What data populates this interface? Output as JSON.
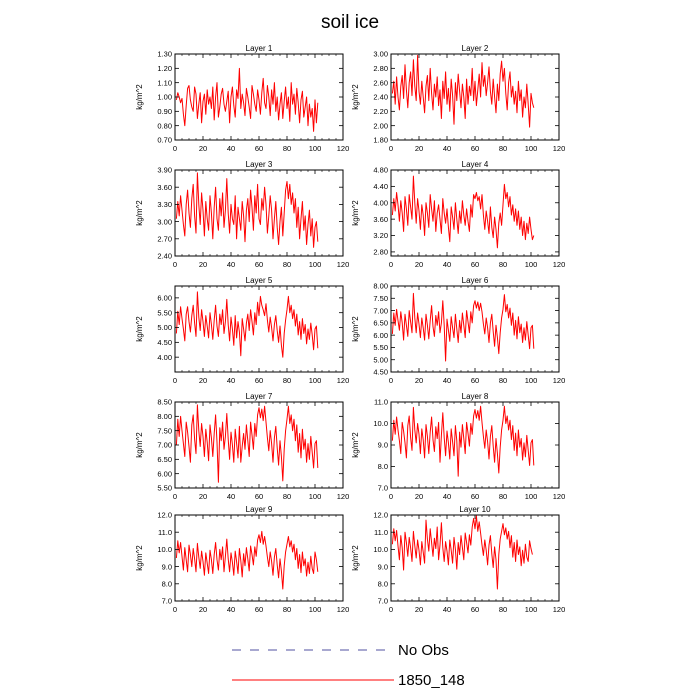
{
  "title": "soil ice",
  "chart_data": {
    "type": "line",
    "title": "soil ice",
    "legend": {
      "placement": "bottom",
      "entries": [
        {
          "label": "No Obs",
          "color": "#5050a0",
          "style": "dashed"
        },
        {
          "label": "1850_148",
          "color": "#ff0000",
          "style": "solid"
        }
      ]
    },
    "xlim": [
      0,
      120
    ],
    "xticks": [
      0,
      20,
      40,
      60,
      80,
      100,
      120
    ],
    "series_color": "#ff0000",
    "panels": [
      {
        "title": "Layer 1",
        "ylabel": "kg/m^2",
        "ylim": [
          0.7,
          1.3
        ],
        "yticks": [
          "0.70",
          "0.80",
          "0.90",
          "1.00",
          "1.10",
          "1.20",
          "1.30"
        ],
        "x_start": 1,
        "x_step": 1,
        "values": [
          0.98,
          1.03,
          1.0,
          0.96,
          0.99,
          0.88,
          0.8,
          0.94,
          1.06,
          1.08,
          0.98,
          0.93,
          0.9,
          1.07,
          1.02,
          0.85,
          0.95,
          1.03,
          0.82,
          0.97,
          1.02,
          0.88,
          1.05,
          0.95,
          1.0,
          0.92,
          1.07,
          0.84,
          1.0,
          1.1,
          0.86,
          0.93,
          1.02,
          1.06,
          0.95,
          0.9,
          0.97,
          1.04,
          0.82,
          1.0,
          1.07,
          0.94,
          0.86,
          1.05,
          0.99,
          1.2,
          0.92,
          1.02,
          0.96,
          0.87,
          1.06,
          1.0,
          0.93,
          0.85,
          1.08,
          1.02,
          0.95,
          0.9,
          1.05,
          0.98,
          0.88,
          1.03,
          1.13,
          0.96,
          0.92,
          1.08,
          1.0,
          0.87,
          1.05,
          0.95,
          1.1,
          0.9,
          1.0,
          0.84,
          0.95,
          1.03,
          0.85,
          0.97,
          1.07,
          0.92,
          1.0,
          0.83,
          1.1,
          0.95,
          1.02,
          0.88,
          1.06,
          0.96,
          0.82,
          0.98,
          1.04,
          0.86,
          0.93,
          1.0,
          0.8,
          0.95,
          0.86,
          0.92,
          0.76,
          0.98,
          0.82,
          0.96
        ]
      },
      {
        "title": "Layer 2",
        "ylabel": "kg/m^2",
        "ylim": [
          1.8,
          3.0
        ],
        "yticks": [
          "1.80",
          "2.00",
          "2.20",
          "2.40",
          "2.60",
          "2.80",
          "3.00"
        ],
        "x_start": 1,
        "x_step": 1,
        "values": [
          2.45,
          2.62,
          2.3,
          2.68,
          2.4,
          2.22,
          2.55,
          2.7,
          2.38,
          2.85,
          2.5,
          2.25,
          2.6,
          2.75,
          2.42,
          2.92,
          2.55,
          2.35,
          2.98,
          2.48,
          2.3,
          2.62,
          2.4,
          2.18,
          2.55,
          2.7,
          2.35,
          2.8,
          2.45,
          2.22,
          2.58,
          2.4,
          2.68,
          2.28,
          2.5,
          2.1,
          2.62,
          2.38,
          2.75,
          2.3,
          2.52,
          2.2,
          2.65,
          2.42,
          2.02,
          2.6,
          2.35,
          2.72,
          2.48,
          2.25,
          2.58,
          2.4,
          2.1,
          2.65,
          2.3,
          2.55,
          2.42,
          2.8,
          2.35,
          2.62,
          2.28,
          2.5,
          2.72,
          2.4,
          2.88,
          2.55,
          2.7,
          2.42,
          2.6,
          2.82,
          2.48,
          2.3,
          2.65,
          2.4,
          2.18,
          2.58,
          2.35,
          2.72,
          2.9,
          2.62,
          2.8,
          2.45,
          2.22,
          2.6,
          2.75,
          2.4,
          2.55,
          2.3,
          2.48,
          2.18,
          2.62,
          2.35,
          2.5,
          2.12,
          2.4,
          2.25,
          2.58,
          2.3,
          1.98,
          2.45,
          2.32,
          2.25
        ]
      },
      {
        "title": "Layer 3",
        "ylabel": "kg/m^2",
        "ylim": [
          2.4,
          3.9
        ],
        "yticks": [
          "2.40",
          "2.70",
          "3.00",
          "3.30",
          "3.60",
          "3.90"
        ],
        "x_start": 1,
        "x_step": 1,
        "values": [
          3.05,
          3.35,
          3.1,
          3.45,
          3.2,
          2.95,
          2.75,
          3.3,
          3.55,
          3.15,
          2.9,
          3.4,
          3.65,
          3.1,
          2.8,
          3.85,
          3.3,
          2.95,
          3.5,
          3.2,
          2.75,
          3.35,
          3.05,
          2.85,
          3.45,
          3.15,
          2.7,
          3.25,
          3.6,
          3.05,
          2.85,
          3.4,
          3.1,
          3.5,
          2.9,
          3.2,
          3.75,
          3.15,
          2.8,
          3.3,
          3.05,
          2.95,
          3.45,
          2.7,
          3.25,
          3.05,
          2.85,
          3.35,
          3.1,
          2.65,
          3.2,
          3.4,
          3.0,
          3.55,
          3.25,
          2.85,
          3.45,
          3.15,
          3.65,
          3.05,
          2.95,
          3.4,
          3.2,
          3.6,
          3.3,
          2.8,
          3.1,
          3.45,
          3.2,
          2.7,
          3.05,
          3.35,
          2.9,
          2.6,
          3.0,
          3.25,
          2.75,
          3.15,
          3.55,
          3.7,
          3.4,
          3.65,
          3.3,
          3.5,
          3.15,
          3.4,
          2.9,
          3.25,
          2.7,
          3.05,
          3.35,
          2.85,
          3.1,
          2.6,
          2.95,
          3.2,
          2.75,
          3.05,
          2.55,
          2.9,
          3.0,
          2.65
        ]
      },
      {
        "title": "Layer 4",
        "ylabel": "kg/m^2",
        "ylim": [
          2.7,
          4.8
        ],
        "yticks": [
          "2.80",
          "3.20",
          "3.60",
          "4.00",
          "4.40",
          "4.80"
        ],
        "x_start": 1,
        "x_step": 1,
        "values": [
          3.7,
          4.1,
          3.8,
          4.25,
          3.95,
          3.55,
          4.05,
          3.75,
          3.3,
          4.15,
          3.85,
          3.45,
          4.2,
          3.9,
          3.6,
          4.65,
          4.0,
          3.5,
          4.1,
          3.8,
          3.35,
          3.95,
          3.7,
          3.2,
          4.0,
          3.75,
          3.4,
          4.2,
          3.85,
          3.55,
          4.05,
          3.3,
          3.75,
          3.95,
          3.6,
          3.25,
          4.1,
          3.75,
          3.5,
          3.85,
          3.4,
          3.05,
          3.9,
          3.65,
          3.35,
          4.0,
          3.6,
          3.25,
          3.8,
          3.5,
          4.05,
          3.7,
          3.45,
          3.85,
          3.55,
          3.3,
          3.95,
          3.65,
          4.2,
          4.1,
          4.25,
          4.05,
          4.15,
          3.85,
          4.2,
          3.7,
          3.35,
          3.8,
          3.55,
          3.25,
          3.9,
          3.4,
          3.15,
          3.65,
          3.35,
          2.9,
          3.5,
          3.75,
          3.45,
          3.95,
          4.45,
          4.1,
          4.25,
          3.9,
          4.15,
          3.7,
          3.95,
          3.55,
          3.85,
          3.45,
          3.8,
          3.35,
          3.65,
          3.2,
          3.55,
          3.1,
          3.5,
          3.25,
          3.65,
          3.35,
          3.1,
          3.2
        ]
      },
      {
        "title": "Layer 5",
        "ylabel": "kg/m^2",
        "ylim": [
          3.5,
          6.4
        ],
        "yticks": [
          "4.00",
          "4.50",
          "5.00",
          "5.50",
          "6.00"
        ],
        "x_start": 1,
        "x_step": 1,
        "values": [
          4.8,
          5.55,
          5.1,
          5.7,
          5.3,
          4.95,
          4.55,
          5.45,
          5.7,
          5.2,
          4.85,
          5.4,
          5.75,
          5.15,
          4.7,
          6.2,
          5.35,
          4.9,
          5.6,
          5.2,
          4.7,
          5.4,
          5.05,
          4.65,
          5.5,
          5.1,
          4.6,
          5.25,
          5.75,
          5.05,
          4.7,
          5.45,
          5.1,
          5.6,
          4.8,
          5.2,
          5.95,
          5.1,
          4.55,
          5.35,
          4.95,
          4.4,
          5.4,
          4.65,
          5.2,
          4.85,
          4.05,
          5.3,
          4.95,
          4.55,
          5.15,
          5.45,
          4.9,
          5.6,
          5.2,
          4.75,
          5.5,
          5.1,
          5.85,
          5.4,
          6.05,
          5.75,
          5.6,
          5.4,
          5.8,
          5.25,
          4.85,
          5.35,
          5.0,
          4.55,
          5.1,
          5.4,
          4.9,
          4.5,
          5.05,
          4.4,
          4.0,
          4.8,
          5.25,
          5.6,
          6.05,
          5.5,
          5.75,
          5.3,
          5.6,
          5.05,
          5.45,
          4.75,
          5.2,
          4.6,
          5.3,
          4.8,
          5.1,
          4.45,
          4.95,
          4.6,
          5.15,
          4.75,
          4.25,
          4.95,
          5.05,
          4.3
        ]
      },
      {
        "title": "Layer 6",
        "ylabel": "kg/m^2",
        "ylim": [
          4.5,
          8.0
        ],
        "yticks": [
          "4.50",
          "5.00",
          "5.50",
          "6.00",
          "6.50",
          "7.00",
          "7.50",
          "8.00"
        ],
        "x_start": 1,
        "x_step": 1,
        "values": [
          6.05,
          6.9,
          6.4,
          7.05,
          6.6,
          6.2,
          6.95,
          6.5,
          5.8,
          6.85,
          6.4,
          5.95,
          7.0,
          6.55,
          6.1,
          7.7,
          6.7,
          6.1,
          6.9,
          6.45,
          5.9,
          6.7,
          6.3,
          5.8,
          6.85,
          6.4,
          5.85,
          6.6,
          7.2,
          6.35,
          5.95,
          6.8,
          6.4,
          6.95,
          6.1,
          6.5,
          7.4,
          6.4,
          4.95,
          6.65,
          6.2,
          5.75,
          6.75,
          6.3,
          5.9,
          6.85,
          6.25,
          5.7,
          6.6,
          6.1,
          6.9,
          6.4,
          5.9,
          7.0,
          6.55,
          6.1,
          6.95,
          6.5,
          7.2,
          7.4,
          7.1,
          7.35,
          7.0,
          7.3,
          6.95,
          6.45,
          6.05,
          6.7,
          6.3,
          5.7,
          6.5,
          6.85,
          6.15,
          5.55,
          6.4,
          5.9,
          5.25,
          6.1,
          6.7,
          7.05,
          7.65,
          6.95,
          7.25,
          6.7,
          7.1,
          6.4,
          6.9,
          6.0,
          6.6,
          5.85,
          6.75,
          6.1,
          6.45,
          5.7,
          6.3,
          5.8,
          6.55,
          6.0,
          5.45,
          6.3,
          6.4,
          5.45
        ]
      },
      {
        "title": "Layer 7",
        "ylabel": "kg/m^2",
        "ylim": [
          5.5,
          8.5
        ],
        "yticks": [
          "5.50",
          "6.00",
          "6.50",
          "7.00",
          "7.50",
          "8.00",
          "8.50"
        ],
        "x_start": 1,
        "x_step": 1,
        "values": [
          7.0,
          7.9,
          7.3,
          8.0,
          7.5,
          7.05,
          6.6,
          7.8,
          7.45,
          6.95,
          6.4,
          7.7,
          8.05,
          7.2,
          6.7,
          8.4,
          7.5,
          6.95,
          7.75,
          7.3,
          6.6,
          7.55,
          7.1,
          6.45,
          7.7,
          7.25,
          6.6,
          7.4,
          8.05,
          7.1,
          5.7,
          7.6,
          7.15,
          7.8,
          6.85,
          7.3,
          8.1,
          7.2,
          6.5,
          7.45,
          7.0,
          6.4,
          7.55,
          7.05,
          6.55,
          7.65,
          6.4,
          6.95,
          7.4,
          6.85,
          7.7,
          7.15,
          6.6,
          7.8,
          7.35,
          6.85,
          7.75,
          7.3,
          8.05,
          8.3,
          7.95,
          8.25,
          7.85,
          8.35,
          7.8,
          7.25,
          6.8,
          7.5,
          7.05,
          6.4,
          7.25,
          7.65,
          6.9,
          6.3,
          7.15,
          6.6,
          5.75,
          6.85,
          7.5,
          7.9,
          8.35,
          7.75,
          8.05,
          7.5,
          7.9,
          7.15,
          7.7,
          6.75,
          7.4,
          6.55,
          7.55,
          6.85,
          7.2,
          6.4,
          7.05,
          6.5,
          7.3,
          6.75,
          6.2,
          7.05,
          7.15,
          6.2
        ]
      },
      {
        "title": "Layer 8",
        "ylabel": "kg/m^2",
        "ylim": [
          7.0,
          11.0
        ],
        "yticks": [
          "7.0",
          "8.0",
          "9.0",
          "10.0",
          "11.0"
        ],
        "x_start": 1,
        "x_step": 1,
        "values": [
          9.2,
          10.15,
          9.5,
          10.3,
          9.7,
          9.2,
          8.6,
          10.05,
          9.65,
          9.1,
          8.4,
          9.9,
          10.35,
          9.35,
          8.75,
          10.75,
          9.7,
          9.1,
          10.0,
          9.5,
          8.6,
          9.75,
          9.25,
          8.4,
          9.95,
          9.4,
          8.6,
          9.6,
          10.3,
          9.25,
          8.7,
          9.85,
          9.3,
          10.05,
          8.2,
          9.45,
          10.5,
          9.35,
          8.5,
          9.65,
          9.1,
          8.35,
          9.75,
          9.15,
          8.5,
          9.9,
          9.2,
          7.55,
          9.6,
          8.9,
          9.95,
          9.3,
          8.6,
          10.05,
          9.55,
          8.95,
          10.0,
          9.5,
          10.35,
          10.65,
          10.25,
          10.6,
          10.15,
          10.8,
          10.05,
          9.4,
          8.85,
          9.7,
          9.15,
          8.35,
          9.4,
          9.9,
          8.95,
          8.2,
          9.3,
          8.6,
          7.7,
          8.9,
          9.7,
          10.15,
          10.8,
          10.0,
          10.35,
          9.7,
          10.15,
          9.25,
          9.9,
          8.75,
          9.55,
          8.5,
          9.7,
          8.9,
          9.3,
          8.3,
          9.1,
          8.45,
          9.45,
          8.75,
          8.05,
          9.1,
          9.25,
          8.05
        ]
      },
      {
        "title": "Layer 9",
        "ylabel": "kg/m^2",
        "ylim": [
          7.0,
          12.0
        ],
        "yticks": [
          "7.0",
          "8.0",
          "9.0",
          "10.0",
          "11.0",
          "12.0"
        ],
        "x_start": 1,
        "x_step": 1,
        "values": [
          9.5,
          10.5,
          9.8,
          10.4,
          9.6,
          8.8,
          10.1,
          9.4,
          8.7,
          10.25,
          9.7,
          9.0,
          10.05,
          9.45,
          8.7,
          10.35,
          9.55,
          8.9,
          9.9,
          9.3,
          8.5,
          9.8,
          9.2,
          8.6,
          9.95,
          9.4,
          8.6,
          9.7,
          10.4,
          9.4,
          8.8,
          10.0,
          9.4,
          10.15,
          8.7,
          9.6,
          10.6,
          9.45,
          8.7,
          9.8,
          9.25,
          8.5,
          9.9,
          9.3,
          8.6,
          10.05,
          9.35,
          8.4,
          9.75,
          9.05,
          10.1,
          9.45,
          8.75,
          10.2,
          9.7,
          9.1,
          10.15,
          9.6,
          10.55,
          10.85,
          10.4,
          11.05,
          10.3,
          10.75,
          10.2,
          9.55,
          9.0,
          9.85,
          9.3,
          8.5,
          9.55,
          10.05,
          9.1,
          8.35,
          9.45,
          8.75,
          7.7,
          9.05,
          9.85,
          10.3,
          10.75,
          10.15,
          10.5,
          9.85,
          10.3,
          9.4,
          10.05,
          8.9,
          9.7,
          8.65,
          9.85,
          9.05,
          9.45,
          8.45,
          9.25,
          8.6,
          9.6,
          8.9,
          8.6,
          9.85,
          9.4,
          8.7
        ]
      },
      {
        "title": "Layer 10",
        "ylabel": "kg/m^2",
        "ylim": [
          7.0,
          12.0
        ],
        "yticks": [
          "7.0",
          "8.0",
          "9.0",
          "10.0",
          "11.0",
          "12.0"
        ],
        "x_start": 1,
        "x_step": 1,
        "values": [
          10.3,
          11.2,
          10.5,
          11.1,
          10.2,
          9.4,
          10.8,
          10.1,
          8.8,
          11.0,
          10.4,
          9.6,
          10.7,
          10.1,
          9.3,
          11.05,
          10.2,
          9.5,
          10.55,
          9.95,
          9.1,
          10.45,
          9.85,
          9.2,
          11.7,
          10.6,
          9.9,
          11.2,
          10.4,
          9.6,
          10.65,
          10.05,
          11.3,
          9.4,
          10.25,
          11.55,
          10.1,
          9.3,
          10.45,
          9.9,
          9.1,
          10.55,
          9.95,
          9.2,
          10.7,
          10.0,
          8.85,
          10.4,
          9.7,
          10.8,
          10.1,
          9.4,
          10.95,
          10.4,
          9.8,
          10.85,
          10.25,
          11.3,
          11.8,
          11.2,
          11.95,
          11.05,
          11.6,
          10.95,
          10.25,
          9.65,
          10.55,
          9.95,
          9.1,
          10.25,
          10.8,
          9.75,
          8.95,
          10.15,
          9.4,
          7.7,
          9.7,
          10.6,
          11.05,
          11.5,
          10.85,
          11.25,
          10.6,
          11.05,
          10.1,
          10.8,
          9.55,
          10.4,
          9.3,
          10.55,
          9.7,
          10.15,
          9.05,
          9.95,
          9.2,
          10.3,
          9.55,
          9.3,
          10.5,
          10.05,
          9.7
        ]
      }
    ]
  }
}
